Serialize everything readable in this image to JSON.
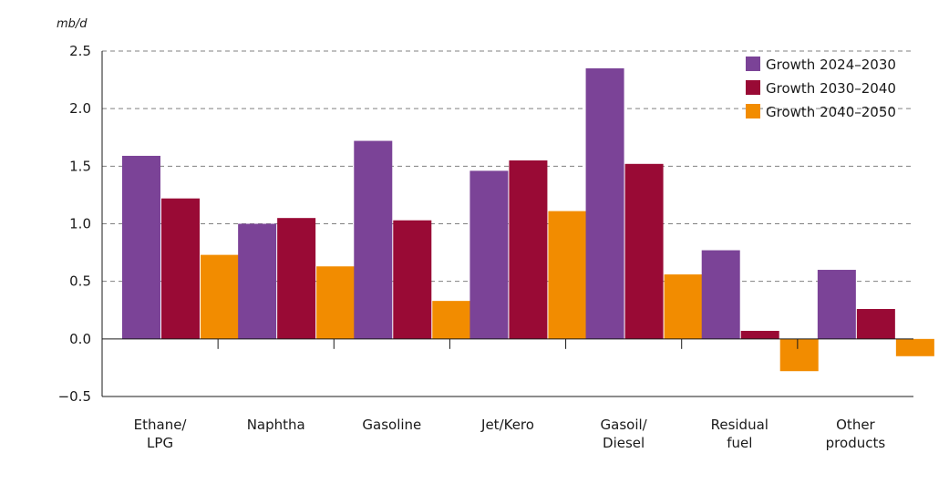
{
  "chart_data": {
    "type": "bar",
    "ylabel": "mb/d",
    "ylim": [
      -0.5,
      2.5
    ],
    "yticks": [
      -0.5,
      0.0,
      0.5,
      1.0,
      1.5,
      2.0,
      2.5
    ],
    "ytick_labels": [
      "−0.5",
      "0.0",
      "0.5",
      "1.0",
      "1.5",
      "2.0",
      "2.5"
    ],
    "grid": "horizontal-dashed",
    "legend_position": "top-right",
    "categories": [
      [
        "Ethane/",
        "LPG"
      ],
      [
        "Naphtha"
      ],
      [
        "Gasoline"
      ],
      [
        "Jet/Kero"
      ],
      [
        "Gasoil/",
        "Diesel"
      ],
      [
        "Residual",
        "fuel"
      ],
      [
        "Other",
        "products"
      ]
    ],
    "series": [
      {
        "name": "Growth 2024–2030",
        "color": "#7b4397",
        "values": [
          1.59,
          1.0,
          1.72,
          1.46,
          2.35,
          0.77,
          0.6
        ]
      },
      {
        "name": "Growth 2030–2040",
        "color": "#990a35",
        "values": [
          1.22,
          1.05,
          1.03,
          1.55,
          1.52,
          0.07,
          0.26
        ]
      },
      {
        "name": "Growth 2040–2050",
        "color": "#f28c00",
        "values": [
          0.73,
          0.63,
          0.33,
          1.11,
          0.56,
          -0.28,
          -0.15
        ]
      }
    ]
  }
}
